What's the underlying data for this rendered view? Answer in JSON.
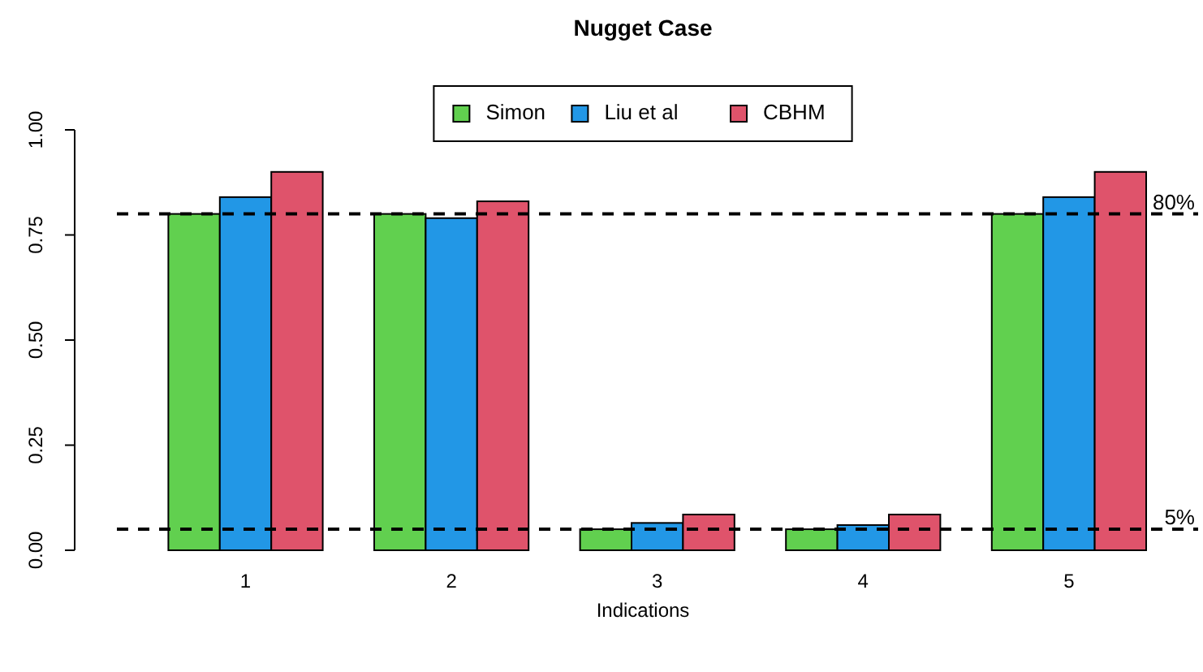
{
  "chart_data": {
    "type": "bar",
    "title": "Nugget Case",
    "xlabel": "Indications",
    "categories": [
      "1",
      "2",
      "3",
      "4",
      "5"
    ],
    "series": [
      {
        "name": "Simon",
        "color": "#61d04f",
        "values": [
          0.8,
          0.8,
          0.05,
          0.05,
          0.8
        ]
      },
      {
        "name": "Liu et al",
        "color": "#2297e6",
        "values": [
          0.84,
          0.79,
          0.065,
          0.06,
          0.84
        ]
      },
      {
        "name": "CBHM",
        "color": "#df536b",
        "values": [
          0.9,
          0.83,
          0.085,
          0.085,
          0.9
        ]
      }
    ],
    "ylim": [
      0,
      1
    ],
    "yticks": [
      {
        "value": 0,
        "label": "0.00"
      },
      {
        "value": 0.25,
        "label": "0.25"
      },
      {
        "value": 0.5,
        "label": "0.50"
      },
      {
        "value": 0.75,
        "label": "0.75"
      },
      {
        "value": 1,
        "label": "1.00"
      }
    ],
    "ref_lines": [
      {
        "axis": "y",
        "value": 0.8,
        "label": "80%",
        "line_style": "dashed",
        "color": "#000000"
      },
      {
        "axis": "y",
        "value": 0.05,
        "label": "5%",
        "line_style": "dashed",
        "color": "#000000"
      }
    ],
    "grid": false,
    "legend": "top"
  }
}
